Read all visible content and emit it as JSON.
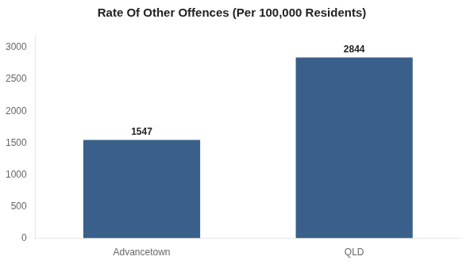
{
  "chart_data": {
    "type": "bar",
    "title": "Rate Of Other Offences (Per 100,000 Residents)",
    "categories": [
      "Advancetown",
      "QLD"
    ],
    "values": [
      1547,
      2844
    ],
    "color": "#3a5f8a",
    "ylim": [
      0,
      3200
    ],
    "yticks": [
      0,
      500,
      1000,
      1500,
      2000,
      2500,
      3000
    ],
    "grid": false,
    "data_labels": true
  }
}
